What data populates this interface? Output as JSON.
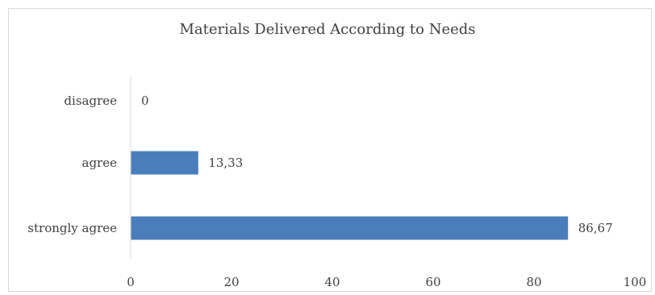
{
  "chart_data": {
    "type": "bar",
    "orientation": "horizontal",
    "title": "Materials Delivered According to Needs",
    "categories": [
      "disagree",
      "agree",
      "strongly agree"
    ],
    "values": [
      0,
      13.33,
      86.67
    ],
    "data_labels": [
      "0",
      "13,33",
      "86,67"
    ],
    "xlim": [
      0,
      100
    ],
    "x_ticks": [
      0,
      20,
      40,
      60,
      80,
      100
    ],
    "x_tick_labels": [
      "0",
      "20",
      "40",
      "60",
      "80",
      "100"
    ],
    "xlabel": "",
    "ylabel": "",
    "grid": false,
    "legend": "none",
    "bar_color": "#4a7ebb"
  }
}
